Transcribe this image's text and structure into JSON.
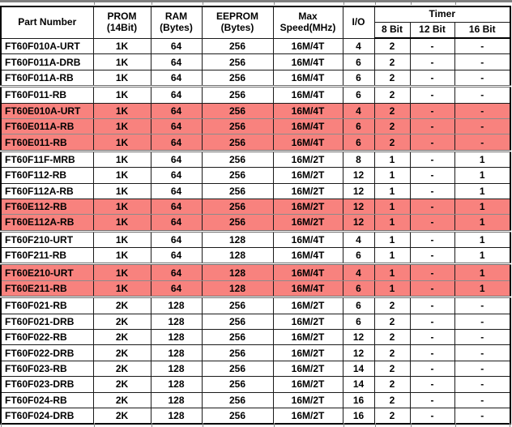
{
  "page": {
    "top_bar_color": "#7f7f7f",
    "background_color": "#ffffff"
  },
  "table": {
    "title_semantic": "MCU part selection table",
    "highlight_color": "#f8827e",
    "border_color": "#1a1a1a",
    "separator_color": "#6f6f6f",
    "header": {
      "part_number": "Part Number",
      "prom_line1": "PROM",
      "prom_line2": "(14Bit)",
      "ram_line1": "RAM",
      "ram_line2": "(Bytes)",
      "eeprom_line1": "EEPROM",
      "eeprom_line2": "(Bytes)",
      "speed_line1": "Max",
      "speed_line2": "Speed(MHz)",
      "io": "I/O",
      "timer": "Timer",
      "timer_8bit": "8 Bit",
      "timer_12bit": "12 Bit",
      "timer_16bit": "16 Bit"
    },
    "rows": [
      {
        "part": "FT60F010A-URT",
        "prom": "1K",
        "ram": "64",
        "eeprom": "256",
        "speed": "16M/4T",
        "io": "4",
        "t8": "2",
        "t12": "-",
        "t16": "-",
        "highlighted": false,
        "sep_top": false
      },
      {
        "part": "FT60F011A-DRB",
        "prom": "1K",
        "ram": "64",
        "eeprom": "256",
        "speed": "16M/4T",
        "io": "6",
        "t8": "2",
        "t12": "-",
        "t16": "-",
        "highlighted": false,
        "sep_top": false
      },
      {
        "part": "FT60F011A-RB",
        "prom": "1K",
        "ram": "64",
        "eeprom": "256",
        "speed": "16M/4T",
        "io": "6",
        "t8": "2",
        "t12": "-",
        "t16": "-",
        "highlighted": false,
        "sep_top": false
      },
      {
        "part": "FT60F011-RB",
        "prom": "1K",
        "ram": "64",
        "eeprom": "256",
        "speed": "16M/4T",
        "io": "6",
        "t8": "2",
        "t12": "-",
        "t16": "-",
        "highlighted": false,
        "sep_top": true
      },
      {
        "part": "FT60E010A-URT",
        "prom": "1K",
        "ram": "64",
        "eeprom": "256",
        "speed": "16M/4T",
        "io": "4",
        "t8": "2",
        "t12": "-",
        "t16": "-",
        "highlighted": true,
        "sep_top": false
      },
      {
        "part": "FT60E011A-RB",
        "prom": "1K",
        "ram": "64",
        "eeprom": "256",
        "speed": "16M/4T",
        "io": "6",
        "t8": "2",
        "t12": "-",
        "t16": "-",
        "highlighted": true,
        "sep_top": false
      },
      {
        "part": "FT60E011-RB",
        "prom": "1K",
        "ram": "64",
        "eeprom": "256",
        "speed": "16M/4T",
        "io": "6",
        "t8": "2",
        "t12": "-",
        "t16": "-",
        "highlighted": true,
        "sep_top": false
      },
      {
        "part": "FT60F11F-MRB",
        "prom": "1K",
        "ram": "64",
        "eeprom": "256",
        "speed": "16M/2T",
        "io": "8",
        "t8": "1",
        "t12": "-",
        "t16": "1",
        "highlighted": false,
        "sep_top": true
      },
      {
        "part": "FT60F112-RB",
        "prom": "1K",
        "ram": "64",
        "eeprom": "256",
        "speed": "16M/2T",
        "io": "12",
        "t8": "1",
        "t12": "-",
        "t16": "1",
        "highlighted": false,
        "sep_top": false
      },
      {
        "part": "FT60F112A-RB",
        "prom": "1K",
        "ram": "64",
        "eeprom": "256",
        "speed": "16M/2T",
        "io": "12",
        "t8": "1",
        "t12": "-",
        "t16": "1",
        "highlighted": false,
        "sep_top": false
      },
      {
        "part": "FT60E112-RB",
        "prom": "1K",
        "ram": "64",
        "eeprom": "256",
        "speed": "16M/2T",
        "io": "12",
        "t8": "1",
        "t12": "-",
        "t16": "1",
        "highlighted": true,
        "sep_top": false
      },
      {
        "part": "FT60E112A-RB",
        "prom": "1K",
        "ram": "64",
        "eeprom": "256",
        "speed": "16M/2T",
        "io": "12",
        "t8": "1",
        "t12": "-",
        "t16": "1",
        "highlighted": true,
        "sep_top": false
      },
      {
        "part": "FT60F210-URT",
        "prom": "1K",
        "ram": "64",
        "eeprom": "128",
        "speed": "16M/4T",
        "io": "4",
        "t8": "1",
        "t12": "-",
        "t16": "1",
        "highlighted": false,
        "sep_top": true
      },
      {
        "part": "FT60F211-RB",
        "prom": "1K",
        "ram": "64",
        "eeprom": "128",
        "speed": "16M/4T",
        "io": "6",
        "t8": "1",
        "t12": "-",
        "t16": "1",
        "highlighted": false,
        "sep_top": false
      },
      {
        "part": "FT60E210-URT",
        "prom": "1K",
        "ram": "64",
        "eeprom": "128",
        "speed": "16M/4T",
        "io": "4",
        "t8": "1",
        "t12": "-",
        "t16": "1",
        "highlighted": true,
        "sep_top": true
      },
      {
        "part": "FT60E211-RB",
        "prom": "1K",
        "ram": "64",
        "eeprom": "128",
        "speed": "16M/4T",
        "io": "6",
        "t8": "1",
        "t12": "-",
        "t16": "1",
        "highlighted": true,
        "sep_top": false
      },
      {
        "part": "FT60F021-RB",
        "prom": "2K",
        "ram": "128",
        "eeprom": "256",
        "speed": "16M/2T",
        "io": "6",
        "t8": "2",
        "t12": "-",
        "t16": "-",
        "highlighted": false,
        "sep_top": true
      },
      {
        "part": "FT60F021-DRB",
        "prom": "2K",
        "ram": "128",
        "eeprom": "256",
        "speed": "16M/2T",
        "io": "6",
        "t8": "2",
        "t12": "-",
        "t16": "-",
        "highlighted": false,
        "sep_top": false
      },
      {
        "part": "FT60F022-RB",
        "prom": "2K",
        "ram": "128",
        "eeprom": "256",
        "speed": "16M/2T",
        "io": "12",
        "t8": "2",
        "t12": "-",
        "t16": "-",
        "highlighted": false,
        "sep_top": false
      },
      {
        "part": "FT60F022-DRB",
        "prom": "2K",
        "ram": "128",
        "eeprom": "256",
        "speed": "16M/2T",
        "io": "12",
        "t8": "2",
        "t12": "-",
        "t16": "-",
        "highlighted": false,
        "sep_top": false
      },
      {
        "part": "FT60F023-RB",
        "prom": "2K",
        "ram": "128",
        "eeprom": "256",
        "speed": "16M/2T",
        "io": "14",
        "t8": "2",
        "t12": "-",
        "t16": "-",
        "highlighted": false,
        "sep_top": false
      },
      {
        "part": "FT60F023-DRB",
        "prom": "2K",
        "ram": "128",
        "eeprom": "256",
        "speed": "16M/2T",
        "io": "14",
        "t8": "2",
        "t12": "-",
        "t16": "-",
        "highlighted": false,
        "sep_top": false
      },
      {
        "part": "FT60F024-RB",
        "prom": "2K",
        "ram": "128",
        "eeprom": "256",
        "speed": "16M/2T",
        "io": "16",
        "t8": "2",
        "t12": "-",
        "t16": "-",
        "highlighted": false,
        "sep_top": false
      },
      {
        "part": "FT60F024-DRB",
        "prom": "2K",
        "ram": "128",
        "eeprom": "256",
        "speed": "16M/2T",
        "io": "16",
        "t8": "2",
        "t12": "-",
        "t16": "-",
        "highlighted": false,
        "sep_top": false
      }
    ]
  }
}
